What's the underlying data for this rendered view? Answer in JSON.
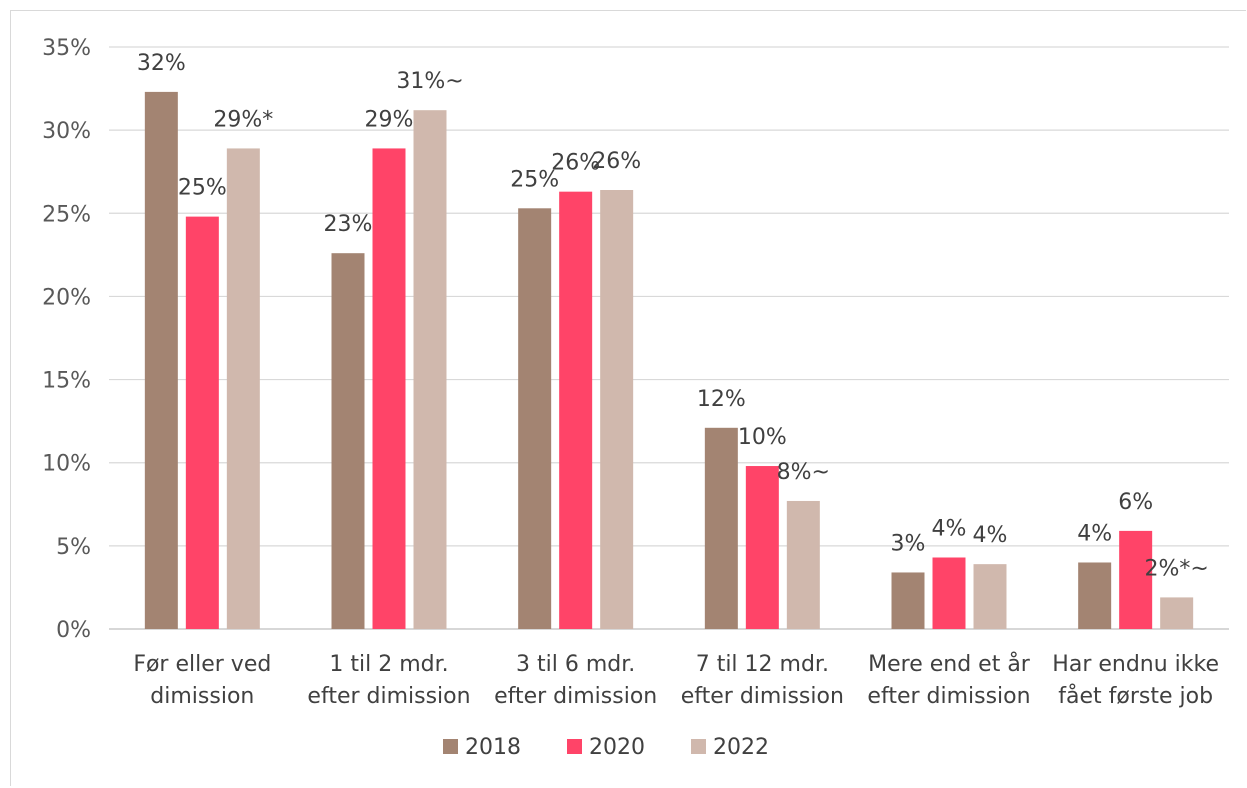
{
  "chart_data": {
    "type": "bar",
    "title": "",
    "xlabel": "",
    "ylabel": "",
    "ylim": [
      0,
      35
    ],
    "yticks": [
      0,
      5,
      10,
      15,
      20,
      25,
      30,
      35
    ],
    "ytick_labels": [
      "0%",
      "5%",
      "10%",
      "15%",
      "20%",
      "25%",
      "30%",
      "35%"
    ],
    "grid": true,
    "legend_position": "bottom",
    "categories": [
      [
        "Før eller ved",
        "dimission"
      ],
      [
        "1 til 2 mdr.",
        "efter dimission"
      ],
      [
        "3 til 6 mdr.",
        "efter dimission"
      ],
      [
        "7 til 12 mdr.",
        "efter dimission"
      ],
      [
        "Mere end et år",
        "efter dimission"
      ],
      [
        "Har endnu ikke",
        "fået første job"
      ]
    ],
    "series": [
      {
        "name": "2018",
        "color": "#a38472",
        "values": [
          32.3,
          22.6,
          25.3,
          12.1,
          3.4,
          4.0
        ],
        "labels": [
          "32%",
          "23%",
          "25%",
          "12%",
          "3%",
          "4%"
        ]
      },
      {
        "name": "2020",
        "color": "#ff4468",
        "values": [
          24.8,
          28.9,
          26.3,
          9.8,
          4.3,
          5.9
        ],
        "labels": [
          "25%",
          "29%",
          "26%",
          "10%",
          "4%",
          "6%"
        ]
      },
      {
        "name": "2022",
        "color": "#d0b8ad",
        "values": [
          28.9,
          31.2,
          26.4,
          7.7,
          3.9,
          1.9
        ],
        "labels": [
          "29%*",
          "31%~",
          "26%",
          "8%~",
          "4%",
          "2%*~"
        ]
      }
    ]
  }
}
